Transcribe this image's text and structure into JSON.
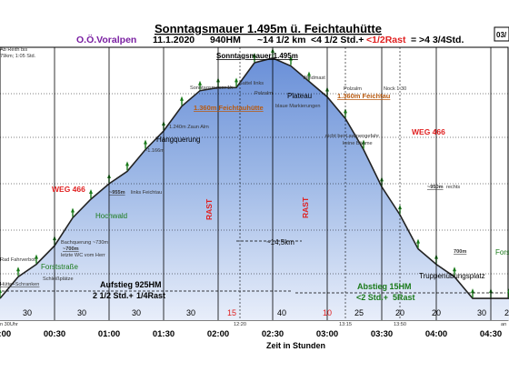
{
  "header": {
    "title": "Sonntagsmauer 1.495m ü. Feichtauhütte",
    "org": "O.Ö.Voralpen",
    "date": "11.1.2020",
    "hm": "940HM",
    "distance": "~14 1/2 km",
    "time_a": "<4 1/2 Std.+",
    "time_rast": "<1/2Rast",
    "time_total": "= >4 3/4Std.",
    "corner_badge": "03/"
  },
  "chart_data": {
    "type": "area",
    "xlabel": "Zeit in Stunden",
    "ylabel": "",
    "x_ticks": [
      "00:00",
      "00:30",
      "01:00",
      "01:30",
      "02:00",
      "02:30",
      "03:00",
      "03:30",
      "04:00",
      "04:30"
    ],
    "segment_durations": [
      "30",
      "30",
      "30",
      "30",
      "15",
      "40",
      "10",
      "25",
      "20",
      "20",
      "30",
      "25"
    ],
    "segment_red": [
      false,
      false,
      false,
      false,
      true,
      false,
      true,
      false,
      false,
      false,
      false,
      false
    ],
    "marker_times": [
      "12:20",
      "13:15",
      "13:50"
    ],
    "series": [
      {
        "x_minutes": [
          0,
          10,
          20,
          30,
          40,
          50,
          60,
          70,
          80,
          90,
          100,
          110,
          120,
          130,
          140,
          150,
          160,
          170,
          180,
          190,
          200,
          210,
          220,
          230,
          240,
          250,
          260,
          270,
          280
        ],
        "y": [
          720,
          790,
          830,
          890,
          980,
          1040,
          1090,
          1130,
          1200,
          1260,
          1340,
          1390,
          1400,
          1400,
          1480,
          1495,
          1470,
          1420,
          1370,
          1300,
          1200,
          1080,
          990,
          880,
          830,
          790,
          720,
          720,
          720
        ]
      }
    ],
    "rast_labels": [
      "RAST",
      "RAST"
    ],
    "distance_label": "~14,5km",
    "annotations": {
      "summit": "Sonntagsmauer 1.495m",
      "sattel": "Sattel links",
      "plateau": "Plateau",
      "windmast": "Windmast",
      "sonntagsmauer_1h": "Sonntagsmauer 1h",
      "polzalm_left": "Polzalm",
      "polzalm_right": "Polzalm",
      "feichtau_left": "1.360m Feichtauhütte",
      "feichtau_right": "1.360m Feichtau",
      "blaue_markierungen": "blaue Markierungen",
      "nock": "Nock 1:30",
      "zaun_alm": "1.240m Zaun Alm",
      "hangquerung": "Hangquerung",
      "quer_1166": "~1.166m",
      "lawinengefahr": "nicht bei Lawinengefahr",
      "keine_baeume": "keine Bäume",
      "weg_left": "WEG 466",
      "weg_right": "WEG 466",
      "m955": "~955m",
      "feichtau_links": "links Feichtau",
      "m950": "~950m",
      "rechts": "rechts",
      "hochwald": "Hochwald",
      "bachquerung": "Bachquerung ~730m",
      "wc": "letzte WC vom Herr",
      "m700_left": "~700m",
      "m700_right": "700m",
      "forststrasse_left": "Forststraße",
      "forststrasse_right": "Forst",
      "fahrverbot": "Rad Fahrverbot",
      "schranken": "Hütte+Schranken",
      "schleppplatz": "Schleißplätze",
      "truppen": "Truppenübungsplatz",
      "ab_reith": "Ab Reith bis",
      "ab_reith2": "79km; 1:05 Std.",
      "start30": "n 30Uhr",
      "an": "an"
    },
    "aufstieg": {
      "line1": "Aufstieg 925HM",
      "line2": "2 1/2 Std.+",
      "line2_red": "1/4Rast"
    },
    "abstieg": {
      "line1": "Abstieg 15HM",
      "line2": "<2 Std.+",
      "line2_red": "5Rast"
    }
  }
}
